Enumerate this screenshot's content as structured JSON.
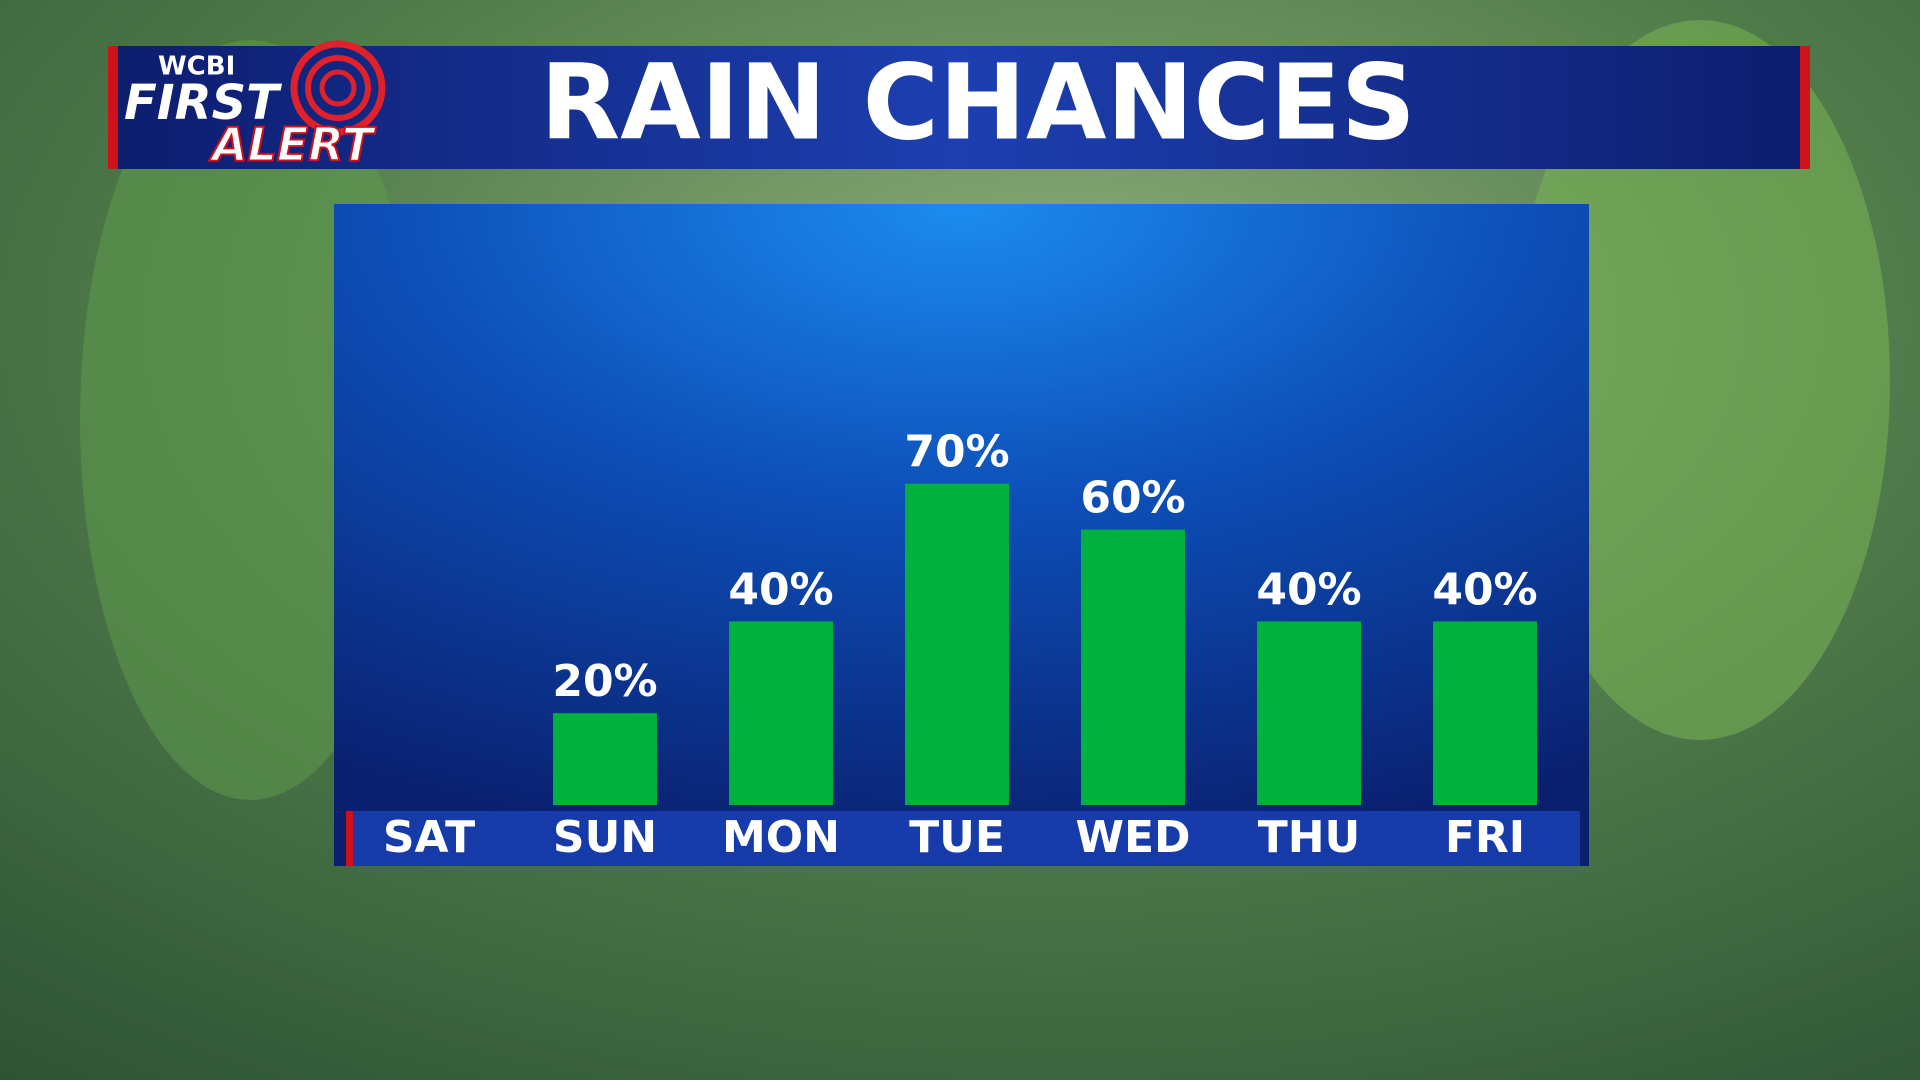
{
  "branding": {
    "station": "WCBI",
    "line1": "FIRST",
    "line2": "ALERT"
  },
  "chart_data": {
    "type": "bar",
    "title": "RAIN CHANCES",
    "categories": [
      "SAT",
      "SUN",
      "MON",
      "TUE",
      "WED",
      "THU",
      "FRI"
    ],
    "values": [
      null,
      20,
      40,
      70,
      60,
      40,
      40
    ],
    "value_labels": [
      null,
      "20%",
      "40%",
      "70%",
      "60%",
      "40%",
      "40%"
    ],
    "color": "#00b140"
  }
}
